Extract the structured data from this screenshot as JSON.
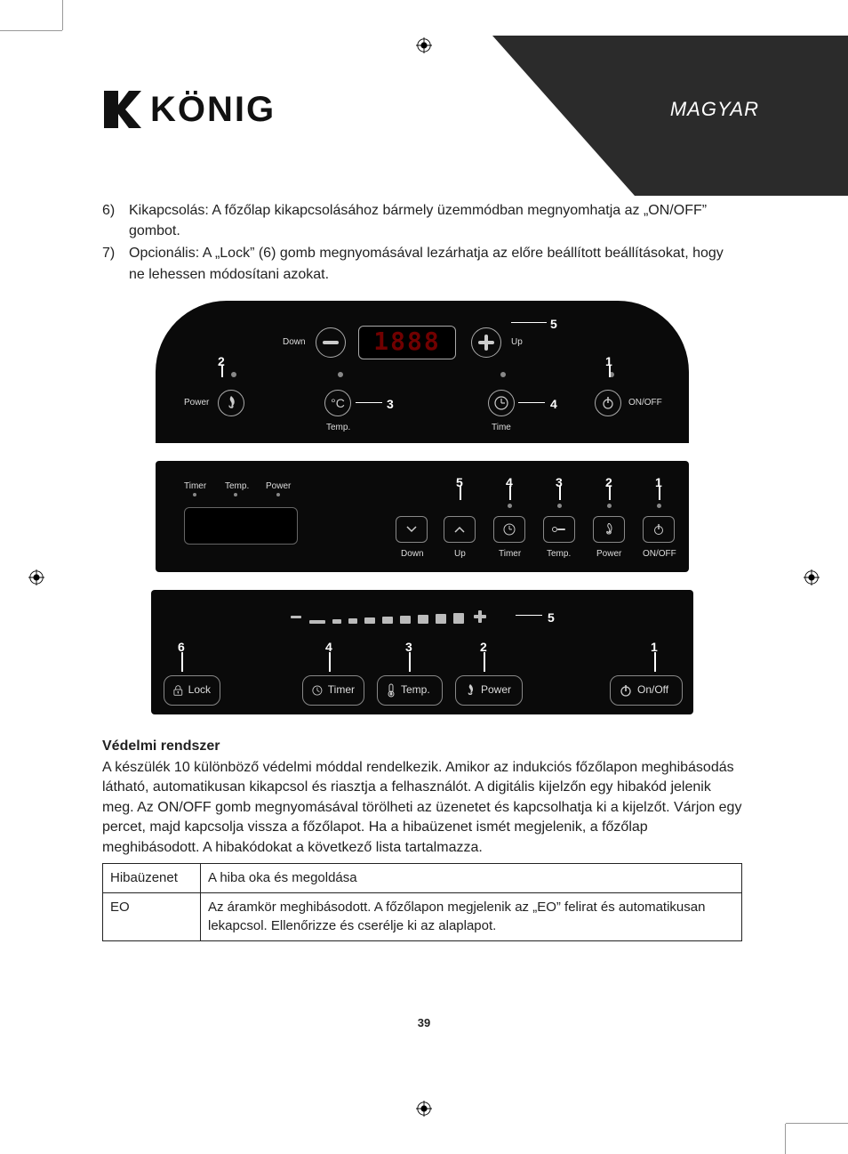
{
  "language_label": "MAGYAR",
  "brand": "KÖNIG",
  "page_number": "39",
  "list": [
    {
      "num": "6)",
      "text": "Kikapcsolás: A főzőlap kikapcsolásához bármely üzemmódban megnyomhatja az „ON/OFF” gombot."
    },
    {
      "num": "7)",
      "text": "Opcionális: A „Lock” (6) gomb megnyomásával lezárhatja az előre beállított beállításokat, hogy ne lehessen módosítani azokat."
    }
  ],
  "panel1": {
    "callouts": {
      "c1": "1",
      "c2": "2",
      "c3": "3",
      "c4": "4",
      "c5": "5"
    },
    "labels": {
      "down": "Down",
      "up": "Up",
      "power": "Power",
      "temp": "Temp.",
      "time": "Time",
      "onoff": "ON/OFF"
    },
    "display": "1888"
  },
  "panel2": {
    "callouts": {
      "c1": "1",
      "c2": "2",
      "c3": "3",
      "c4": "4",
      "c5": "5"
    },
    "top_labels": {
      "timer": "Timer",
      "temp": "Temp.",
      "power": "Power"
    },
    "btn_labels": {
      "down": "Down",
      "up": "Up",
      "timer": "Timer",
      "temp": "Temp.",
      "power": "Power",
      "onoff": "ON/OFF"
    }
  },
  "panel3": {
    "callouts": {
      "c1": "1",
      "c2": "2",
      "c3": "3",
      "c4": "4",
      "c5": "5",
      "c6": "6"
    },
    "btn_labels": {
      "lock": "Lock",
      "timer": "Timer",
      "temp": "Temp.",
      "power": "Power",
      "onoff": "On/Off"
    },
    "level_segments": [
      {
        "w": 18,
        "h": 4
      },
      {
        "w": 10,
        "h": 5
      },
      {
        "w": 10,
        "h": 6
      },
      {
        "w": 12,
        "h": 7
      },
      {
        "w": 12,
        "h": 8
      },
      {
        "w": 12,
        "h": 9
      },
      {
        "w": 12,
        "h": 10
      },
      {
        "w": 12,
        "h": 11
      },
      {
        "w": 12,
        "h": 12
      }
    ]
  },
  "protection": {
    "title": "Védelmi rendszer",
    "body": "A készülék 10 különböző védelmi móddal rendelkezik. Amikor az indukciós főzőlapon meghibásodás látható, automatikusan kikapcsol és riasztja a felhasználót. A digitális kijelzőn egy hibakód jelenik meg. Az ON/OFF gomb megnyomásával törölheti az üzenetet és kapcsolhatja ki a kijelzőt. Várjon egy percet, majd kapcsolja vissza a főzőlapot. Ha a hibaüzenet ismét megjelenik, a főzőlap meghibásodott. A hibakódokat a következő lista tartalmazza."
  },
  "error_table": {
    "headers": {
      "col1": "Hibaüzenet",
      "col2": "A hiba oka és megoldása"
    },
    "rows": [
      {
        "code": "EO",
        "desc": "Az áramkör meghibásodott. A főzőlapon megjelenik az „EO” felirat és automatikusan lekapcsol. Ellenőrizze és cserélje ki az alaplapot."
      }
    ]
  },
  "colors": {
    "panel_bg": "#0a0a0a",
    "led_red": "#c00",
    "text": "#222",
    "border": "#222"
  }
}
